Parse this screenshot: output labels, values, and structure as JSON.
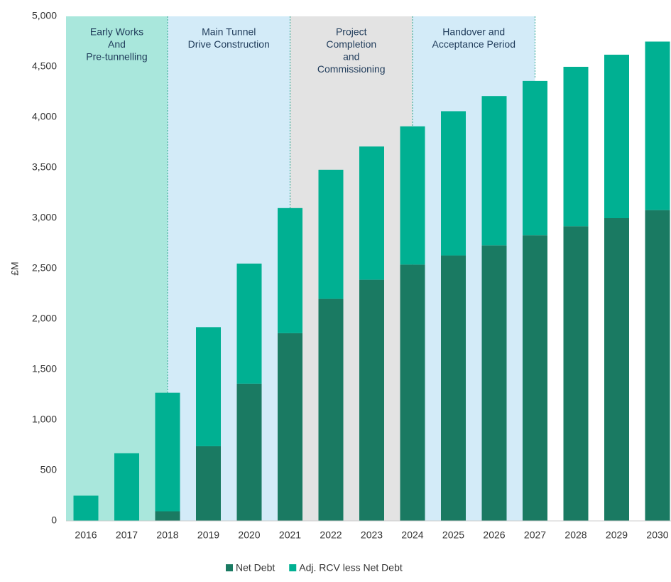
{
  "chart_data": {
    "type": "stacked_bar",
    "y_label": "£M",
    "categories": [
      "2016",
      "2017",
      "2018",
      "2019",
      "2020",
      "2021",
      "2022",
      "2023",
      "2024",
      "2025",
      "2026",
      "2027",
      "2028",
      "2029",
      "2030"
    ],
    "series": [
      {
        "name": "Net Debt",
        "color": "#1a7a62",
        "values": [
          0,
          0,
          95,
          740,
          1360,
          1860,
          2200,
          2390,
          2540,
          2630,
          2730,
          2830,
          2920,
          3000,
          3080
        ]
      },
      {
        "name": "Adj. RCV less Net Debt",
        "color": "#00b092",
        "values": [
          250,
          670,
          1175,
          1180,
          1190,
          1240,
          1280,
          1320,
          1370,
          1430,
          1480,
          1530,
          1580,
          1620,
          1670
        ]
      }
    ],
    "ylim": [
      0,
      5000
    ],
    "yticks": [
      0,
      500,
      {
        "value": 1000,
        "label": "1,000"
      },
      {
        "value": 1500,
        "label": "1,500"
      },
      {
        "value": 2000,
        "label": "2,000"
      },
      {
        "value": 2500,
        "label": "2,500"
      },
      {
        "value": 3000,
        "label": "3,000"
      },
      {
        "value": 3500,
        "label": "3,500"
      },
      {
        "value": 4000,
        "label": "4,000"
      },
      {
        "value": 4500,
        "label": "4,500"
      },
      {
        "value": 5000,
        "label": "5,000"
      }
    ],
    "phases": [
      {
        "lines": [
          "Early Works",
          "And",
          "Pre-tunnelling"
        ],
        "color": "#a9e7dc"
      },
      {
        "lines": [
          "Main Tunnel",
          "Drive Construction"
        ],
        "color": "#d3ebf8"
      },
      {
        "lines": [
          "Project",
          "Completion",
          "and",
          "Commissioning"
        ],
        "color": "#e3e3e3"
      },
      {
        "lines": [
          "Handover and",
          "Acceptance Period"
        ],
        "color": "#d3ebf8"
      }
    ]
  }
}
